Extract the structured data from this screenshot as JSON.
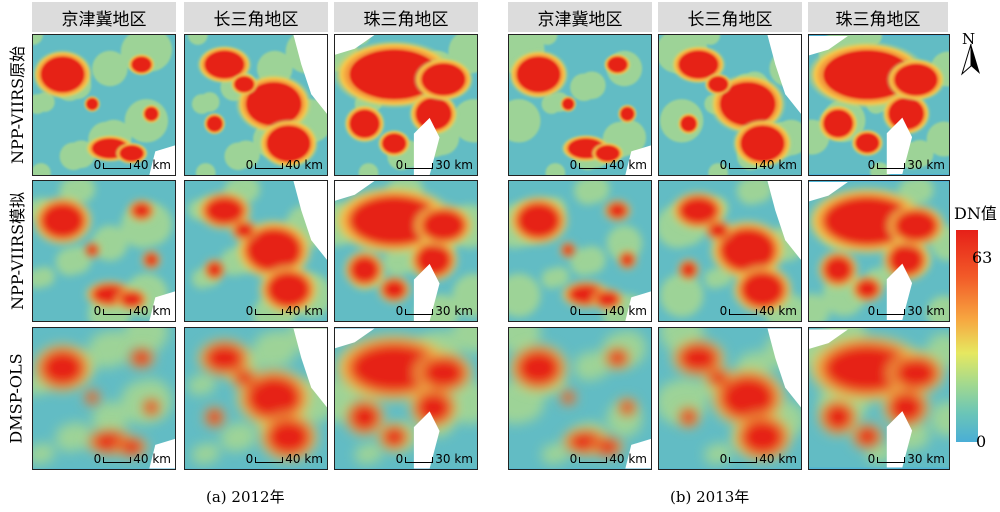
{
  "columns": [
    "京津冀地区",
    "长三角地区",
    "珠三角地区",
    "京津冀地区",
    "长三角地区",
    "珠三角地区"
  ],
  "rows": [
    "NPP-VIIRS原始",
    "NPP-VIIRS模拟",
    "DMSP-OLS"
  ],
  "scale_labels": [
    "0",
    "40 km",
    "0",
    "40 km",
    "0",
    "30 km"
  ],
  "captions": {
    "a": "(a) 2012年",
    "b": "(b) 2013年"
  },
  "legend": {
    "title": "DN值",
    "max": "63",
    "min": "0"
  },
  "north_label": "N",
  "colors": {
    "low": "#4aaed6",
    "mid": "#e6e860",
    "high": "#e62018",
    "header_bg": "#dcdcdc"
  }
}
